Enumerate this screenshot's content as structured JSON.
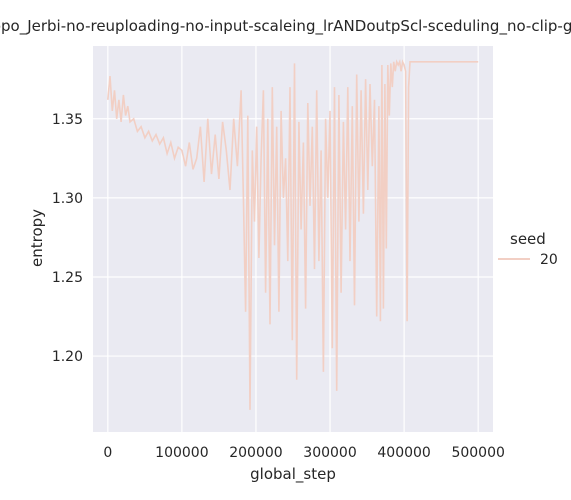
{
  "chart_data": {
    "type": "line",
    "title": "ppo_Jerbi-no-reuploading-no-input-scaleing_lrANDoutpScl-sceduling_no-clip-gr",
    "xlabel": "global_step",
    "ylabel": "entropy",
    "xlim": [
      -20000,
      520000
    ],
    "ylim": [
      1.152,
      1.396
    ],
    "x_ticks": [
      0,
      100000,
      200000,
      300000,
      400000,
      500000
    ],
    "x_tick_labels": [
      "0",
      "100000",
      "200000",
      "300000",
      "400000",
      "500000"
    ],
    "y_ticks": [
      1.2,
      1.25,
      1.3,
      1.35
    ],
    "y_tick_labels": [
      "1.20",
      "1.25",
      "1.30",
      "1.35"
    ],
    "grid": true,
    "legend": {
      "title": "seed",
      "placement": "right",
      "entries": [
        "20"
      ]
    },
    "colors": {
      "background": "#eaeaf2",
      "grid": "#ffffff",
      "series": "#f2cfc4"
    },
    "series": [
      {
        "name": "20",
        "x": [
          0,
          3000,
          6000,
          9000,
          12000,
          15000,
          18000,
          21000,
          24000,
          27000,
          30000,
          35000,
          40000,
          45000,
          50000,
          55000,
          60000,
          65000,
          70000,
          75000,
          80000,
          85000,
          90000,
          95000,
          100000,
          105000,
          110000,
          115000,
          120000,
          125000,
          130000,
          135000,
          140000,
          145000,
          150000,
          155000,
          160000,
          165000,
          170000,
          175000,
          180000,
          183000,
          186000,
          189000,
          192000,
          195000,
          198000,
          201000,
          204000,
          207000,
          210000,
          213000,
          216000,
          219000,
          222000,
          225000,
          228000,
          231000,
          234000,
          237000,
          240000,
          243000,
          246000,
          249000,
          252000,
          255000,
          258000,
          261000,
          264000,
          267000,
          270000,
          273000,
          276000,
          279000,
          282000,
          285000,
          288000,
          291000,
          294000,
          297000,
          300000,
          303000,
          306000,
          309000,
          312000,
          315000,
          318000,
          321000,
          324000,
          327000,
          330000,
          333000,
          336000,
          339000,
          342000,
          345000,
          348000,
          351000,
          354000,
          357000,
          360000,
          363000,
          366000,
          368000,
          370000,
          372000,
          374000,
          376000,
          378000,
          380000,
          382000,
          384000,
          386000,
          388000,
          390000,
          392000,
          394000,
          396000,
          398000,
          400000,
          402000,
          404000,
          406000,
          408000,
          410000,
          420000,
          440000,
          460000,
          480000,
          500000
        ],
        "values": [
          1.362,
          1.377,
          1.355,
          1.368,
          1.35,
          1.362,
          1.348,
          1.365,
          1.352,
          1.358,
          1.348,
          1.35,
          1.342,
          1.345,
          1.338,
          1.342,
          1.336,
          1.34,
          1.334,
          1.338,
          1.328,
          1.335,
          1.325,
          1.332,
          1.33,
          1.32,
          1.335,
          1.318,
          1.325,
          1.345,
          1.31,
          1.35,
          1.315,
          1.34,
          1.312,
          1.348,
          1.33,
          1.305,
          1.35,
          1.32,
          1.368,
          1.3,
          1.228,
          1.352,
          1.166,
          1.33,
          1.285,
          1.345,
          1.262,
          1.325,
          1.368,
          1.24,
          1.35,
          1.22,
          1.37,
          1.27,
          1.345,
          1.228,
          1.355,
          1.3,
          1.325,
          1.26,
          1.37,
          1.21,
          1.385,
          1.185,
          1.348,
          1.28,
          1.335,
          1.23,
          1.36,
          1.295,
          1.345,
          1.255,
          1.368,
          1.26,
          1.33,
          1.19,
          1.35,
          1.3,
          1.355,
          1.205,
          1.37,
          1.178,
          1.365,
          1.24,
          1.348,
          1.28,
          1.37,
          1.26,
          1.358,
          1.232,
          1.378,
          1.285,
          1.368,
          1.29,
          1.375,
          1.305,
          1.372,
          1.32,
          1.362,
          1.225,
          1.358,
          1.222,
          1.384,
          1.23,
          1.372,
          1.268,
          1.384,
          1.352,
          1.385,
          1.37,
          1.386,
          1.38,
          1.386,
          1.384,
          1.386,
          1.38,
          1.386,
          1.384,
          1.38,
          1.222,
          1.37,
          1.386,
          1.386,
          1.386,
          1.386,
          1.386,
          1.386,
          1.386
        ]
      }
    ]
  }
}
